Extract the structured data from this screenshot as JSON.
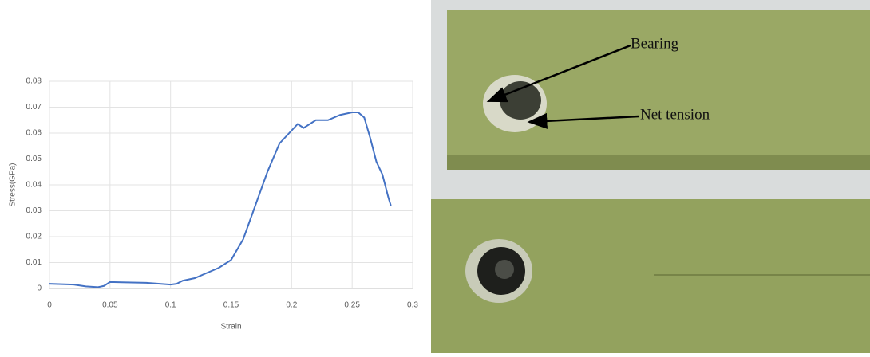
{
  "chart_data": {
    "type": "line",
    "xlabel": "Strain",
    "ylabel": "Stress(GPa)",
    "x": [
      0,
      0.02,
      0.03,
      0.04,
      0.045,
      0.05,
      0.06,
      0.08,
      0.1,
      0.105,
      0.11,
      0.12,
      0.13,
      0.14,
      0.15,
      0.16,
      0.17,
      0.18,
      0.19,
      0.2,
      0.205,
      0.21,
      0.22,
      0.23,
      0.24,
      0.25,
      0.255,
      0.26,
      0.265,
      0.27,
      0.275,
      0.28,
      0.282
    ],
    "values": [
      0.0018,
      0.0015,
      0.0008,
      0.0005,
      0.001,
      0.0025,
      0.0024,
      0.0022,
      0.0015,
      0.0018,
      0.003,
      0.004,
      0.006,
      0.008,
      0.011,
      0.019,
      0.032,
      0.045,
      0.056,
      0.061,
      0.0635,
      0.062,
      0.065,
      0.065,
      0.067,
      0.068,
      0.068,
      0.066,
      0.058,
      0.049,
      0.044,
      0.035,
      0.032
    ],
    "color": "#4472c4",
    "xlim": [
      0,
      0.3
    ],
    "xticks": [
      0,
      0.05,
      0.1,
      0.15,
      0.2,
      0.25,
      0.3
    ],
    "ylim": [
      0,
      0.08
    ],
    "yticks": [
      0,
      0.01,
      0.02,
      0.03,
      0.04,
      0.05,
      0.06,
      0.07,
      0.08
    ],
    "grid": true
  },
  "photo": {
    "annotations": [
      "Bearing",
      "Net tension"
    ]
  }
}
